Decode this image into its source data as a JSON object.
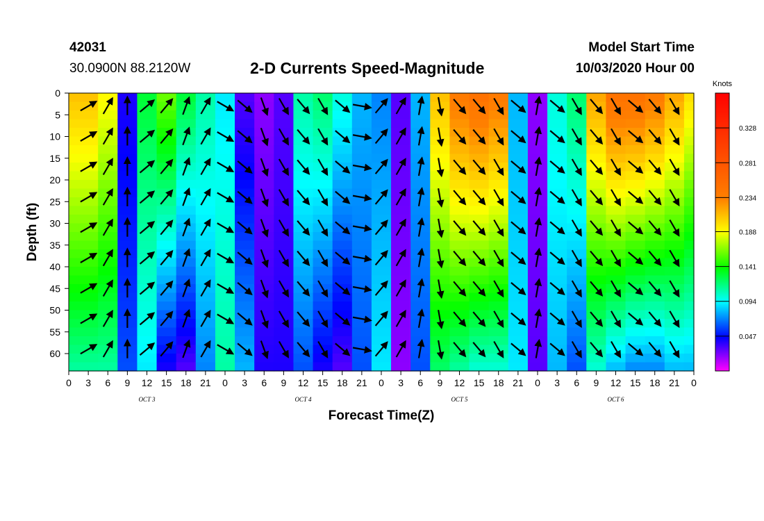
{
  "header": {
    "station": "42031",
    "coords": "30.0900N 88.2120W",
    "title": "2-D Currents Speed-Magnitude",
    "model_start_label": "Model Start Time",
    "model_start_value": "10/03/2020 Hour 00"
  },
  "chart_data": {
    "type": "heatmap",
    "title": "2-D Currents Speed-Magnitude",
    "xlabel": "Forecast Time(Z)",
    "ylabel": "Depth (ft)",
    "x_range_hours": [
      0,
      96
    ],
    "x_tick_labels": [
      "0",
      "3",
      "6",
      "9",
      "12",
      "15",
      "18",
      "21",
      "0",
      "3",
      "6",
      "9",
      "12",
      "15",
      "18",
      "21",
      "0",
      "3",
      "6",
      "9",
      "12",
      "15",
      "18",
      "21",
      "0",
      "3",
      "6",
      "9",
      "12",
      "15",
      "18",
      "21",
      "0"
    ],
    "day_labels": [
      "OCT 3",
      "OCT 4",
      "OCT 5",
      "OCT 6"
    ],
    "y_range_ft": [
      0,
      64
    ],
    "y_ticks": [
      0,
      5,
      10,
      15,
      20,
      25,
      30,
      35,
      40,
      45,
      50,
      55,
      60
    ],
    "colorbar": {
      "unit": "Knots",
      "tick_values": [
        0.328,
        0.281,
        0.234,
        0.188,
        0.141,
        0.094,
        0.047
      ],
      "tick_labels": [
        "0.328",
        "0.281",
        "0.234",
        "0.188",
        "0.141",
        "0.094",
        "0.047"
      ],
      "range": [
        0.0,
        0.375
      ]
    },
    "speed_columns_by_hour": [
      {
        "hour": 0,
        "speed_top": 0.21,
        "speed_bottom": 0.11
      },
      {
        "hour": 3,
        "speed_top": 0.21,
        "speed_bottom": 0.11
      },
      {
        "hour": 6,
        "speed_top": 0.19,
        "speed_bottom": 0.11
      },
      {
        "hour": 9,
        "speed_top": 0.04,
        "speed_bottom": 0.06
      },
      {
        "hour": 12,
        "speed_top": 0.13,
        "speed_bottom": 0.09
      },
      {
        "hour": 15,
        "speed_top": 0.16,
        "speed_bottom": 0.04
      },
      {
        "hour": 18,
        "speed_top": 0.13,
        "speed_bottom": 0.03
      },
      {
        "hour": 21,
        "speed_top": 0.11,
        "speed_bottom": 0.07
      },
      {
        "hour": 24,
        "speed_top": 0.09,
        "speed_bottom": 0.11
      },
      {
        "hour": 27,
        "speed_top": 0.03,
        "speed_bottom": 0.08
      },
      {
        "hour": 30,
        "speed_top": 0.02,
        "speed_bottom": 0.04
      },
      {
        "hour": 33,
        "speed_top": 0.03,
        "speed_bottom": 0.04
      },
      {
        "hour": 36,
        "speed_top": 0.11,
        "speed_bottom": 0.06
      },
      {
        "hour": 39,
        "speed_top": 0.12,
        "speed_bottom": 0.04
      },
      {
        "hour": 42,
        "speed_top": 0.1,
        "speed_bottom": 0.03
      },
      {
        "hour": 45,
        "speed_top": 0.08,
        "speed_bottom": 0.06
      },
      {
        "hour": 48,
        "speed_top": 0.07,
        "speed_bottom": 0.09
      },
      {
        "hour": 51,
        "speed_top": 0.03,
        "speed_bottom": 0.02
      },
      {
        "hour": 54,
        "speed_top": 0.08,
        "speed_bottom": 0.06
      },
      {
        "hour": 57,
        "speed_top": 0.21,
        "speed_bottom": 0.12
      },
      {
        "hour": 60,
        "speed_top": 0.24,
        "speed_bottom": 0.11
      },
      {
        "hour": 63,
        "speed_top": 0.25,
        "speed_bottom": 0.1
      },
      {
        "hour": 66,
        "speed_top": 0.24,
        "speed_bottom": 0.1
      },
      {
        "hour": 69,
        "speed_top": 0.08,
        "speed_bottom": 0.09
      },
      {
        "hour": 72,
        "speed_top": 0.02,
        "speed_bottom": 0.03
      },
      {
        "hour": 75,
        "speed_top": 0.1,
        "speed_bottom": 0.08
      },
      {
        "hour": 78,
        "speed_top": 0.12,
        "speed_bottom": 0.06
      },
      {
        "hour": 81,
        "speed_top": 0.22,
        "speed_bottom": 0.1
      },
      {
        "hour": 84,
        "speed_top": 0.25,
        "speed_bottom": 0.08
      },
      {
        "hour": 87,
        "speed_top": 0.25,
        "speed_bottom": 0.07
      },
      {
        "hour": 90,
        "speed_top": 0.24,
        "speed_bottom": 0.07
      },
      {
        "hour": 93,
        "speed_top": 0.22,
        "speed_bottom": 0.08
      },
      {
        "hour": 96,
        "speed_top": 0.2,
        "speed_bottom": 0.08
      }
    ],
    "vector_direction_by_hour_deg": [
      60,
      60,
      30,
      0,
      50,
      40,
      20,
      30,
      120,
      130,
      160,
      150,
      140,
      150,
      130,
      100,
      40,
      30,
      10,
      170,
      140,
      140,
      150,
      130,
      10,
      130,
      150,
      140,
      150,
      130,
      140,
      150,
      60
    ]
  }
}
